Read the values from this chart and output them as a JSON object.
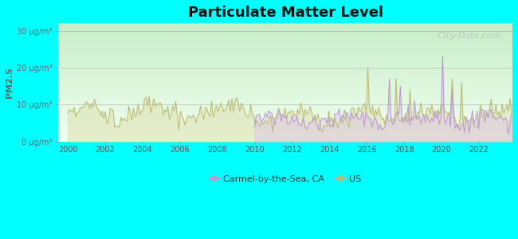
{
  "title": "Particulate Matter Level",
  "ylabel": "PM2.5",
  "background_color": "#00FFFF",
  "ylim": [
    0,
    32
  ],
  "xlim": [
    1999.5,
    2023.8
  ],
  "yticks": [
    0,
    10,
    20,
    30
  ],
  "ytick_labels": [
    "0 μg/m³",
    "10 μg/m³",
    "20 μg/m³",
    "30 μg/m³"
  ],
  "xticks": [
    2000,
    2002,
    2004,
    2006,
    2008,
    2010,
    2012,
    2014,
    2016,
    2018,
    2020,
    2022
  ],
  "carmel_color": "#bb99cc",
  "carmel_fill_color": "#ddbbee",
  "us_color": "#bbbb77",
  "us_fill_color": "#ddddaa",
  "watermark": "City-Data.com",
  "watermark_color": "#bbbbbb",
  "legend_carmel": "Carmel-by-the-Sea, CA",
  "legend_us": "US",
  "grad_top": "#f0fff0",
  "grad_bottom": "#c8eec8",
  "title_fontsize": 13,
  "tick_fontsize": 7,
  "ylabel_fontsize": 8
}
